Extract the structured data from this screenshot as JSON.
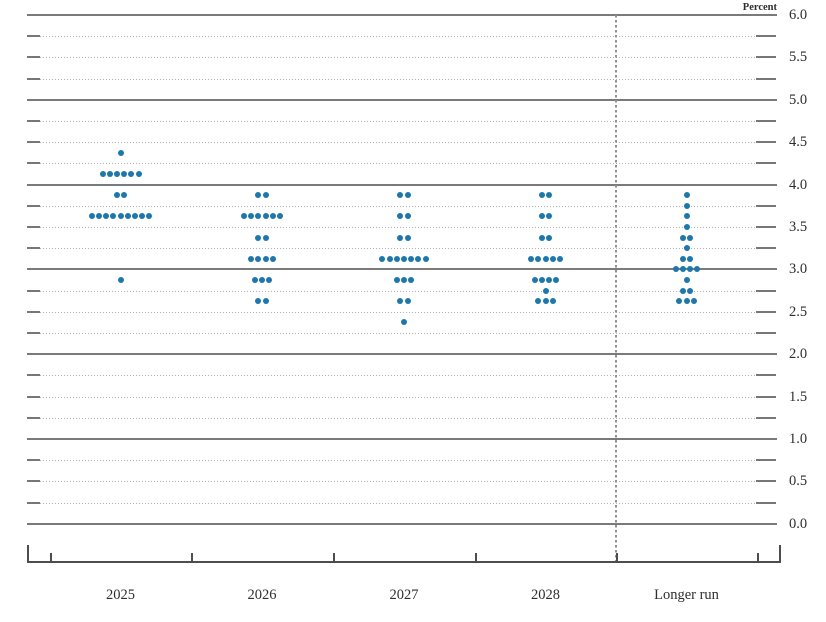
{
  "chart_data": {
    "type": "scatter",
    "variant": "fomc-dot-plot",
    "title": "",
    "unit_label": "Percent",
    "categories": [
      "2025",
      "2026",
      "2027",
      "2028",
      "Longer run"
    ],
    "y_axis": {
      "min": 0.0,
      "max": 6.0,
      "minor_step": 0.25,
      "label_step": 0.5,
      "tick_labels": [
        "6.0",
        "5.5",
        "5.0",
        "4.5",
        "4.0",
        "3.5",
        "3.0",
        "2.5",
        "2.0",
        "1.5",
        "1.0",
        "0.5",
        "0.0"
      ],
      "solid_lines_at": [
        6.0,
        5.0,
        4.0,
        3.0,
        2.0,
        1.0,
        0.0
      ]
    },
    "legend": [],
    "grid": "on",
    "divider_after_category": "2028",
    "series": [
      {
        "name": "2025",
        "dots": [
          {
            "rate": 4.375,
            "count": 1
          },
          {
            "rate": 4.125,
            "count": 6
          },
          {
            "rate": 3.875,
            "count": 2
          },
          {
            "rate": 3.625,
            "count": 9
          },
          {
            "rate": 2.875,
            "count": 1
          }
        ]
      },
      {
        "name": "2026",
        "dots": [
          {
            "rate": 3.875,
            "count": 2
          },
          {
            "rate": 3.625,
            "count": 6
          },
          {
            "rate": 3.375,
            "count": 2
          },
          {
            "rate": 3.125,
            "count": 4
          },
          {
            "rate": 2.875,
            "count": 3
          },
          {
            "rate": 2.625,
            "count": 2
          }
        ]
      },
      {
        "name": "2027",
        "dots": [
          {
            "rate": 3.875,
            "count": 2
          },
          {
            "rate": 3.625,
            "count": 2
          },
          {
            "rate": 3.375,
            "count": 2
          },
          {
            "rate": 3.125,
            "count": 7
          },
          {
            "rate": 2.875,
            "count": 3
          },
          {
            "rate": 2.625,
            "count": 2
          },
          {
            "rate": 2.375,
            "count": 1
          }
        ]
      },
      {
        "name": "2028",
        "dots": [
          {
            "rate": 3.875,
            "count": 2
          },
          {
            "rate": 3.625,
            "count": 2
          },
          {
            "rate": 3.375,
            "count": 2
          },
          {
            "rate": 3.125,
            "count": 5
          },
          {
            "rate": 2.875,
            "count": 4
          },
          {
            "rate": 2.75,
            "count": 1
          },
          {
            "rate": 2.625,
            "count": 3
          }
        ]
      },
      {
        "name": "Longer run",
        "dots": [
          {
            "rate": 3.875,
            "count": 1
          },
          {
            "rate": 3.75,
            "count": 1
          },
          {
            "rate": 3.625,
            "count": 1
          },
          {
            "rate": 3.5,
            "count": 1
          },
          {
            "rate": 3.375,
            "count": 2
          },
          {
            "rate": 3.25,
            "count": 1
          },
          {
            "rate": 3.125,
            "count": 2
          },
          {
            "rate": 3.0,
            "count": 4
          },
          {
            "rate": 2.875,
            "count": 1
          },
          {
            "rate": 2.75,
            "count": 2
          },
          {
            "rate": 2.625,
            "count": 3
          }
        ]
      }
    ],
    "colors": {
      "dot": "#1e77ac",
      "solid_grid": "#7a7a7a",
      "dotted_grid": "#b0b0b0",
      "axis": "#4d4d4d",
      "divider": "#909090",
      "text": "#2e2e2e"
    }
  }
}
